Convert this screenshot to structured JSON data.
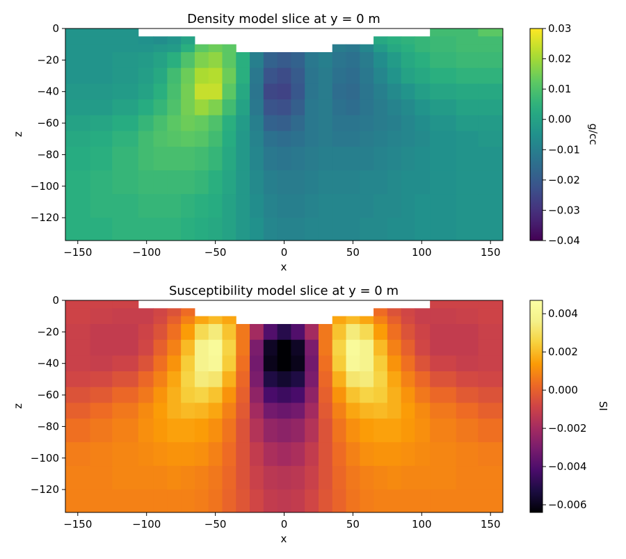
{
  "chart_data": [
    {
      "type": "heatmap",
      "title": "Density model slice at y = 0 m",
      "xlabel": "x",
      "ylabel": "z",
      "xlim": [
        -159,
        159
      ],
      "ylim": [
        -134.5,
        0
      ],
      "xticks": [
        -150,
        -100,
        -50,
        0,
        50,
        100,
        150
      ],
      "xtick_labels": [
        "−150",
        "−100",
        "−50",
        "0",
        "50",
        "100",
        "150"
      ],
      "yticks": [
        0,
        -20,
        -40,
        -60,
        -80,
        -100,
        -120
      ],
      "ytick_labels": [
        "0",
        "−20",
        "−40",
        "−60",
        "−80",
        "−100",
        "−120"
      ],
      "colormap": "viridis",
      "clim": [
        -0.04,
        0.03
      ],
      "colorbar_label": "g/cc",
      "colorbar_ticks": [
        0.03,
        0.02,
        0.01,
        0.0,
        -0.01,
        -0.02,
        -0.03,
        -0.04
      ],
      "colorbar_tick_labels": [
        "0.03",
        "0.02",
        "0.01",
        "0.00",
        "−0.01",
        "−0.02",
        "−0.03",
        "−0.04"
      ],
      "x_edges": [
        -159,
        -141,
        -125,
        -106,
        -95,
        -85,
        -75,
        -65,
        -55,
        -45,
        -35,
        -25,
        -15,
        -5,
        5,
        15,
        25,
        35,
        45,
        55,
        65,
        75,
        85,
        95,
        106,
        125,
        141,
        159
      ],
      "z_edges": [
        0,
        -5,
        -10,
        -15,
        -25,
        -35,
        -45,
        -55,
        -65,
        -75,
        -90,
        -105,
        -120,
        -134.5
      ],
      "values": [
        [
          -0.004,
          -0.004,
          -0.004,
          null,
          null,
          null,
          null,
          null,
          null,
          null,
          null,
          null,
          null,
          null,
          null,
          null,
          null,
          null,
          null,
          null,
          null,
          null,
          null,
          null,
          0.008,
          0.008,
          0.012
        ],
        [
          -0.004,
          -0.004,
          -0.004,
          -0.005,
          -0.006,
          -0.004,
          0.0,
          null,
          null,
          null,
          null,
          null,
          null,
          null,
          null,
          null,
          null,
          null,
          null,
          null,
          0.002,
          0.004,
          0.005,
          0.006,
          0.007,
          0.008,
          0.008
        ],
        [
          -0.004,
          -0.004,
          -0.004,
          -0.004,
          -0.003,
          -0.002,
          0.004,
          0.012,
          0.014,
          0.012,
          null,
          null,
          null,
          null,
          null,
          null,
          null,
          -0.011,
          -0.012,
          -0.008,
          -0.002,
          0.002,
          0.004,
          0.006,
          0.007,
          0.008,
          0.008
        ],
        [
          -0.004,
          -0.004,
          -0.003,
          -0.002,
          0.0,
          0.004,
          0.01,
          0.016,
          0.018,
          0.012,
          0.004,
          -0.01,
          -0.018,
          -0.02,
          -0.018,
          -0.012,
          -0.01,
          -0.013,
          -0.014,
          -0.011,
          -0.006,
          -0.002,
          0.002,
          0.004,
          0.006,
          0.007,
          0.007
        ],
        [
          -0.004,
          -0.004,
          -0.003,
          -0.001,
          0.002,
          0.008,
          0.014,
          0.021,
          0.022,
          0.014,
          0.004,
          -0.012,
          -0.022,
          -0.024,
          -0.02,
          -0.013,
          -0.011,
          -0.014,
          -0.015,
          -0.012,
          -0.008,
          -0.004,
          0.0,
          0.002,
          0.004,
          0.005,
          0.005
        ],
        [
          -0.003,
          -0.003,
          -0.002,
          0.0,
          0.004,
          0.009,
          0.015,
          0.024,
          0.024,
          0.012,
          0.002,
          -0.013,
          -0.025,
          -0.026,
          -0.021,
          -0.013,
          -0.011,
          -0.015,
          -0.016,
          -0.013,
          -0.01,
          -0.007,
          -0.004,
          -0.001,
          0.001,
          0.002,
          0.002
        ],
        [
          -0.002,
          -0.002,
          0.0,
          0.003,
          0.006,
          0.01,
          0.015,
          0.019,
          0.016,
          0.008,
          0.0,
          -0.012,
          -0.022,
          -0.023,
          -0.019,
          -0.012,
          -0.011,
          -0.014,
          -0.015,
          -0.013,
          -0.011,
          -0.009,
          -0.007,
          -0.004,
          -0.002,
          0.0,
          0.0
        ],
        [
          0.0,
          0.001,
          0.003,
          0.006,
          0.009,
          0.012,
          0.014,
          0.013,
          0.01,
          0.004,
          -0.002,
          -0.01,
          -0.018,
          -0.019,
          -0.016,
          -0.012,
          -0.011,
          -0.013,
          -0.013,
          -0.012,
          -0.011,
          -0.01,
          -0.008,
          -0.006,
          -0.004,
          -0.002,
          -0.002
        ],
        [
          0.002,
          0.003,
          0.005,
          0.008,
          0.01,
          0.011,
          0.012,
          0.011,
          0.008,
          0.003,
          -0.003,
          -0.009,
          -0.014,
          -0.015,
          -0.014,
          -0.012,
          -0.011,
          -0.012,
          -0.012,
          -0.011,
          -0.01,
          -0.009,
          -0.008,
          -0.007,
          -0.005,
          -0.004,
          -0.003
        ],
        [
          0.003,
          0.004,
          0.006,
          0.008,
          0.009,
          0.009,
          0.009,
          0.008,
          0.006,
          0.002,
          -0.003,
          -0.008,
          -0.012,
          -0.013,
          -0.012,
          -0.011,
          -0.01,
          -0.01,
          -0.01,
          -0.01,
          -0.009,
          -0.008,
          -0.007,
          -0.006,
          -0.005,
          -0.004,
          -0.004
        ],
        [
          0.004,
          0.005,
          0.006,
          0.007,
          0.007,
          0.007,
          0.007,
          0.006,
          0.004,
          0.001,
          -0.003,
          -0.007,
          -0.01,
          -0.011,
          -0.011,
          -0.01,
          -0.009,
          -0.009,
          -0.009,
          -0.008,
          -0.008,
          -0.007,
          -0.006,
          -0.006,
          -0.005,
          -0.004,
          -0.004
        ],
        [
          0.004,
          0.005,
          0.005,
          0.006,
          0.006,
          0.006,
          0.005,
          0.004,
          0.003,
          0.0,
          -0.003,
          -0.006,
          -0.009,
          -0.01,
          -0.01,
          -0.009,
          -0.008,
          -0.008,
          -0.008,
          -0.008,
          -0.007,
          -0.007,
          -0.006,
          -0.005,
          -0.005,
          -0.004,
          -0.004
        ],
        [
          0.004,
          0.004,
          0.005,
          0.005,
          0.005,
          0.005,
          0.004,
          0.003,
          0.002,
          0.0,
          -0.003,
          -0.005,
          -0.008,
          -0.009,
          -0.009,
          -0.008,
          -0.008,
          -0.008,
          -0.008,
          -0.007,
          -0.007,
          -0.006,
          -0.006,
          -0.005,
          -0.005,
          -0.004,
          -0.004
        ]
      ]
    },
    {
      "type": "heatmap",
      "title": "Susceptibility model slice at y = 0 m",
      "xlabel": "x",
      "ylabel": "z",
      "xlim": [
        -159,
        159
      ],
      "ylim": [
        -134.5,
        0
      ],
      "xticks": [
        -150,
        -100,
        -50,
        0,
        50,
        100,
        150
      ],
      "xtick_labels": [
        "−150",
        "−100",
        "−50",
        "0",
        "50",
        "100",
        "150"
      ],
      "yticks": [
        0,
        -20,
        -40,
        -60,
        -80,
        -100,
        -120
      ],
      "ytick_labels": [
        "0",
        "−20",
        "−40",
        "−60",
        "−80",
        "−100",
        "−120"
      ],
      "colormap": "inferno",
      "clim": [
        -0.0064,
        0.0047
      ],
      "colorbar_label": "SI",
      "colorbar_ticks": [
        0.004,
        0.002,
        0.0,
        -0.002,
        -0.004,
        -0.006
      ],
      "colorbar_tick_labels": [
        "0.004",
        "0.002",
        "0.000",
        "−0.002",
        "−0.004",
        "−0.006"
      ],
      "x_edges": [
        -159,
        -141,
        -125,
        -106,
        -95,
        -85,
        -75,
        -65,
        -55,
        -45,
        -35,
        -25,
        -15,
        -5,
        5,
        15,
        25,
        35,
        45,
        55,
        65,
        75,
        85,
        95,
        106,
        125,
        141,
        159
      ],
      "z_edges": [
        0,
        -5,
        -10,
        -15,
        -25,
        -35,
        -45,
        -55,
        -65,
        -75,
        -90,
        -105,
        -120,
        -134.5
      ],
      "values": [
        [
          -0.0009,
          -0.0009,
          -0.0009,
          null,
          null,
          null,
          null,
          null,
          null,
          null,
          null,
          null,
          null,
          null,
          null,
          null,
          null,
          null,
          null,
          null,
          null,
          null,
          null,
          null,
          -0.0009,
          -0.0009,
          -0.0009
        ],
        [
          -0.0009,
          -0.001,
          -0.0011,
          -0.0011,
          -0.0008,
          -0.0004,
          0.0003,
          null,
          null,
          null,
          null,
          null,
          null,
          null,
          null,
          null,
          null,
          null,
          null,
          null,
          0.0003,
          -0.0004,
          -0.0008,
          -0.0011,
          -0.0011,
          -0.001,
          -0.0009
        ],
        [
          -0.0009,
          -0.001,
          -0.0011,
          -0.0011,
          -0.0007,
          0.0,
          0.0008,
          0.0016,
          0.002,
          0.0016,
          null,
          null,
          null,
          null,
          null,
          null,
          null,
          0.0016,
          0.002,
          0.0016,
          0.0008,
          0.0,
          -0.0007,
          -0.0011,
          -0.0011,
          -0.001,
          -0.0009
        ],
        [
          -0.001,
          -0.0012,
          -0.0012,
          -0.0009,
          -0.0004,
          0.0004,
          0.0014,
          0.0028,
          0.0034,
          0.0022,
          0.0006,
          -0.002,
          -0.004,
          -0.005,
          -0.004,
          -0.002,
          0.0006,
          0.0022,
          0.0034,
          0.0028,
          0.0014,
          0.0004,
          -0.0004,
          -0.0009,
          -0.0012,
          -0.0012,
          -0.001
        ],
        [
          -0.001,
          -0.0012,
          -0.0012,
          -0.0008,
          0.0,
          0.0008,
          0.002,
          0.0038,
          0.0043,
          0.0026,
          0.0006,
          -0.003,
          -0.0058,
          -0.0064,
          -0.0058,
          -0.003,
          0.0006,
          0.0026,
          0.0043,
          0.0038,
          0.002,
          0.0008,
          0.0,
          -0.0008,
          -0.0012,
          -0.0012,
          -0.001
        ],
        [
          -0.001,
          -0.0011,
          -0.0009,
          -0.0004,
          0.0004,
          0.0012,
          0.0024,
          0.0038,
          0.0042,
          0.0024,
          0.0004,
          -0.0032,
          -0.006,
          -0.0064,
          -0.006,
          -0.0032,
          0.0004,
          0.0024,
          0.0042,
          0.0038,
          0.0024,
          0.0012,
          0.0004,
          -0.0004,
          -0.0009,
          -0.0011,
          -0.001
        ],
        [
          -0.0008,
          -0.0007,
          -0.0004,
          0.0002,
          0.0008,
          0.0016,
          0.0026,
          0.0034,
          0.0032,
          0.0018,
          0.0002,
          -0.003,
          -0.0052,
          -0.0056,
          -0.0052,
          -0.003,
          0.0002,
          0.0018,
          0.0032,
          0.0034,
          0.0026,
          0.0016,
          0.0008,
          0.0002,
          -0.0004,
          -0.0007,
          -0.0008
        ],
        [
          -0.0004,
          -0.0002,
          0.0002,
          0.0006,
          0.0012,
          0.0018,
          0.0024,
          0.0026,
          0.0022,
          0.0012,
          0.0,
          -0.0025,
          -0.0042,
          -0.0045,
          -0.0042,
          -0.0025,
          0.0,
          0.0012,
          0.0022,
          0.0026,
          0.0024,
          0.0018,
          0.0012,
          0.0006,
          0.0002,
          -0.0002,
          -0.0004
        ],
        [
          0.0,
          0.0003,
          0.0006,
          0.001,
          0.0014,
          0.0018,
          0.002,
          0.0019,
          0.0016,
          0.0008,
          -0.0002,
          -0.002,
          -0.0032,
          -0.0034,
          -0.0032,
          -0.002,
          -0.0002,
          0.0008,
          0.0016,
          0.0019,
          0.002,
          0.0018,
          0.0014,
          0.001,
          0.0006,
          0.0003,
          0.0
        ],
        [
          0.0004,
          0.0006,
          0.0008,
          0.0011,
          0.0013,
          0.0015,
          0.0015,
          0.0014,
          0.0011,
          0.0005,
          -0.0004,
          -0.0016,
          -0.0024,
          -0.0026,
          -0.0024,
          -0.0016,
          -0.0004,
          0.0005,
          0.0011,
          0.0014,
          0.0015,
          0.0015,
          0.0013,
          0.0011,
          0.0008,
          0.0006,
          0.0004
        ],
        [
          0.0007,
          0.0008,
          0.0009,
          0.001,
          0.0011,
          0.0012,
          0.0012,
          0.0011,
          0.0008,
          0.0003,
          -0.0004,
          -0.0012,
          -0.0018,
          -0.002,
          -0.0018,
          -0.0012,
          -0.0004,
          0.0003,
          0.0008,
          0.0011,
          0.0012,
          0.0012,
          0.0011,
          0.001,
          0.0009,
          0.0008,
          0.0007
        ],
        [
          0.0008,
          0.0008,
          0.0009,
          0.0009,
          0.0009,
          0.001,
          0.0009,
          0.0008,
          0.0006,
          0.0002,
          -0.0004,
          -0.001,
          -0.0014,
          -0.0015,
          -0.0014,
          -0.001,
          -0.0004,
          0.0002,
          0.0006,
          0.0008,
          0.0009,
          0.001,
          0.0009,
          0.0009,
          0.0009,
          0.0008,
          0.0008
        ],
        [
          0.0008,
          0.0008,
          0.0008,
          0.0008,
          0.0008,
          0.0008,
          0.0008,
          0.0007,
          0.0005,
          0.0001,
          -0.0003,
          -0.0008,
          -0.0012,
          -0.0013,
          -0.0012,
          -0.0008,
          -0.0003,
          0.0001,
          0.0005,
          0.0007,
          0.0008,
          0.0008,
          0.0008,
          0.0008,
          0.0008,
          0.0008,
          0.0008
        ]
      ]
    }
  ]
}
